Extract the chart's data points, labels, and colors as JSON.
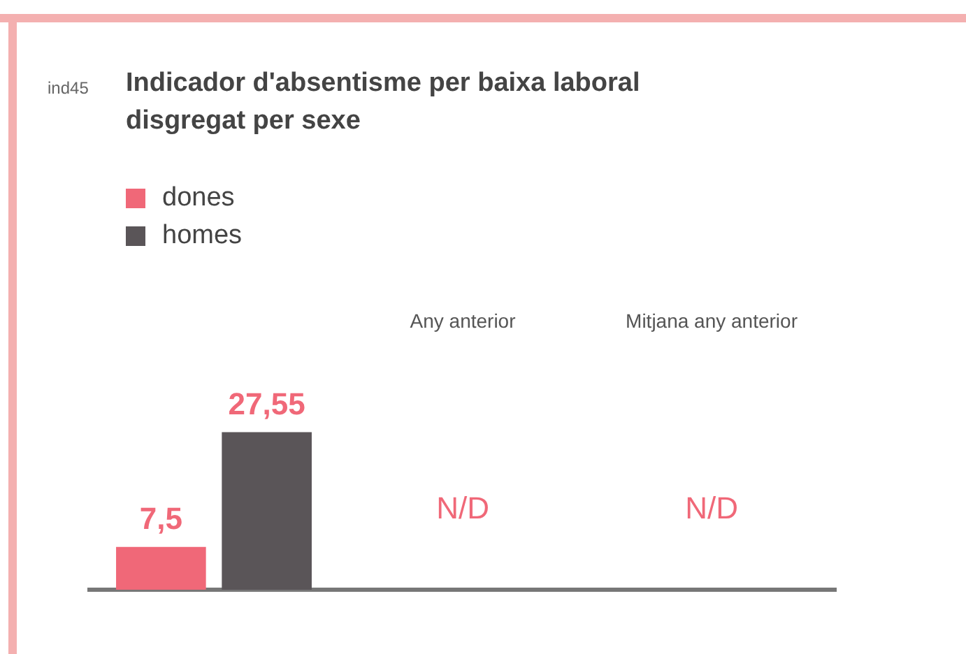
{
  "chart_data": {
    "type": "bar",
    "title": "Indicador d'absentisme per baixa laboral disgregat per sexe",
    "categories": [
      null,
      "Any anterior",
      "Mitjana any anterior"
    ],
    "series": [
      {
        "name": "dones",
        "color": "#f06878",
        "values": [
          7.5,
          null,
          null
        ],
        "value_labels": [
          "7,5",
          null,
          null
        ]
      },
      {
        "name": "homes",
        "color": "#5a5558",
        "values": [
          27.55,
          null,
          null
        ],
        "value_labels": [
          "27,55",
          null,
          null
        ]
      }
    ],
    "annotations": [
      "ind45",
      "N/D",
      "N/D"
    ],
    "legend": "top left",
    "grid": false
  }
}
